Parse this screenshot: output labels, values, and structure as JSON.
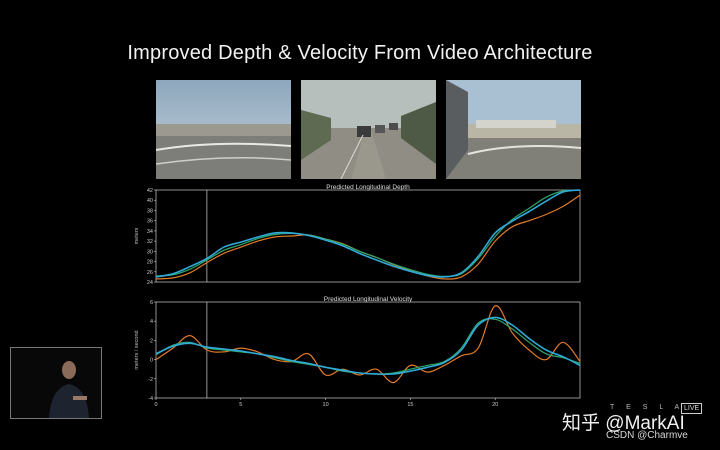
{
  "slide": {
    "title": "Improved Depth & Velocity From Video Architecture"
  },
  "thumbnails": [
    {
      "name": "camera-view-left"
    },
    {
      "name": "camera-view-center"
    },
    {
      "name": "camera-view-right"
    }
  ],
  "watermark": {
    "brand_letters": "T E S L A",
    "live_badge": "LIVE",
    "zhihu": "知乎 @MarkAI",
    "csdn": "CSDN @Charmve"
  },
  "colors": {
    "background": "#000000",
    "series_orange": "#e07b2a",
    "series_green": "#2ea86b",
    "series_cyan": "#2fa9d8",
    "axis": "#cfcfcf"
  },
  "chart_data": [
    {
      "type": "line",
      "title": "Predicted Longitudinal Depth",
      "ylabel": "meters",
      "xlabel": "",
      "xlim": [
        0,
        25
      ],
      "ylim": [
        24,
        42
      ],
      "yticks": [
        24,
        26,
        28,
        30,
        32,
        34,
        36,
        38,
        40,
        42
      ],
      "xticks": [],
      "marker_x": 3,
      "x": [
        0,
        1,
        2,
        3,
        4,
        5,
        6,
        7,
        8,
        9,
        10,
        11,
        12,
        13,
        14,
        15,
        16,
        17,
        18,
        19,
        20,
        21,
        22,
        23,
        24,
        25
      ],
      "series": [
        {
          "color": "#e07b2a",
          "values": [
            24.6,
            24.8,
            25.8,
            27.8,
            29.6,
            30.8,
            32.0,
            32.8,
            33.0,
            33.2,
            32.4,
            31.5,
            30.0,
            28.8,
            27.4,
            26.2,
            25.2,
            24.6,
            25.0,
            27.5,
            32.0,
            34.8,
            36.0,
            37.2,
            38.8,
            41.0
          ]
        },
        {
          "color": "#2ea86b",
          "values": [
            25.2,
            25.4,
            26.5,
            28.3,
            30.2,
            31.3,
            32.5,
            33.3,
            33.5,
            33.2,
            32.4,
            31.4,
            30.0,
            28.8,
            27.5,
            26.4,
            25.5,
            25.1,
            25.6,
            28.6,
            32.9,
            36.2,
            38.4,
            40.6,
            41.8,
            42.0
          ]
        },
        {
          "color": "#2fa9d8",
          "values": [
            25.0,
            25.6,
            27.0,
            28.6,
            30.8,
            31.8,
            32.8,
            33.6,
            33.6,
            33.1,
            32.2,
            31.1,
            29.6,
            28.3,
            27.1,
            26.1,
            25.3,
            25.0,
            25.8,
            29.0,
            33.6,
            35.9,
            37.8,
            39.8,
            41.6,
            42.0
          ]
        }
      ]
    },
    {
      "type": "line",
      "title": "Predicted Longitudinal Velocity",
      "ylabel": "meters / second",
      "xlabel": "",
      "xlim": [
        0,
        25
      ],
      "ylim": [
        -4,
        6
      ],
      "yticks": [
        -4,
        -2,
        0,
        2,
        4,
        6
      ],
      "xticks": [
        0,
        5,
        10,
        15,
        20
      ],
      "marker_x": 3,
      "x": [
        0,
        1,
        2,
        3,
        4,
        5,
        6,
        7,
        8,
        9,
        10,
        11,
        12,
        13,
        14,
        15,
        16,
        17,
        18,
        19,
        20,
        21,
        22,
        23,
        24,
        25
      ],
      "series": [
        {
          "color": "#e07b2a",
          "values": [
            0.0,
            1.2,
            2.5,
            1.0,
            0.8,
            1.2,
            0.8,
            0.0,
            -0.2,
            0.6,
            -1.6,
            -1.0,
            -1.6,
            -1.0,
            -2.4,
            -0.6,
            -1.3,
            -0.6,
            0.4,
            1.2,
            5.6,
            2.8,
            1.0,
            0.0,
            1.8,
            -0.2
          ]
        },
        {
          "color": "#2ea86b",
          "values": [
            0.5,
            1.5,
            1.8,
            1.2,
            1.0,
            0.8,
            0.6,
            0.2,
            -0.2,
            -0.5,
            -0.8,
            -1.2,
            -1.4,
            -1.5,
            -1.4,
            -1.0,
            -0.6,
            -0.2,
            1.2,
            3.8,
            4.2,
            3.2,
            1.8,
            0.6,
            0.2,
            -0.4
          ]
        },
        {
          "color": "#2fa9d8",
          "values": [
            0.6,
            1.4,
            1.7,
            1.3,
            1.1,
            0.9,
            0.6,
            0.3,
            -0.1,
            -0.4,
            -0.8,
            -1.1,
            -1.4,
            -1.5,
            -1.5,
            -1.2,
            -0.8,
            -0.3,
            1.0,
            3.6,
            4.4,
            3.6,
            2.2,
            1.0,
            0.3,
            -0.6
          ]
        }
      ]
    }
  ]
}
